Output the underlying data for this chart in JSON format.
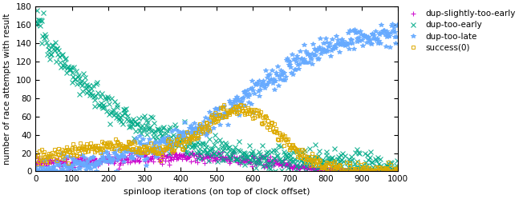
{
  "title": "",
  "xlabel": "spinloop iterations (on top of clock offset)",
  "ylabel": "number of race attempts with result",
  "xlim": [
    0,
    1000
  ],
  "ylim": [
    0,
    180
  ],
  "yticks": [
    0,
    20,
    40,
    60,
    80,
    100,
    120,
    140,
    160,
    180
  ],
  "xticks": [
    0,
    100,
    200,
    300,
    400,
    500,
    600,
    700,
    800,
    900,
    1000
  ],
  "series": [
    {
      "label": "dup-slightly-too-early",
      "color": "#cc00cc",
      "marker": "+",
      "markersize": 4,
      "profile": "slightly_early"
    },
    {
      "label": "dup-too-early",
      "color": "#00aa88",
      "marker": "x",
      "markersize": 4,
      "profile": "too_early"
    },
    {
      "label": "dup-too-late",
      "color": "#66aaff",
      "marker": "*",
      "markersize": 4,
      "profile": "too_late"
    },
    {
      "label": "success(0)",
      "color": "#ddaa00",
      "marker": "s",
      "markersize": 3,
      "profile": "success"
    }
  ],
  "figsize": [
    6.52,
    2.49
  ],
  "dpi": 100,
  "seed": 12345
}
